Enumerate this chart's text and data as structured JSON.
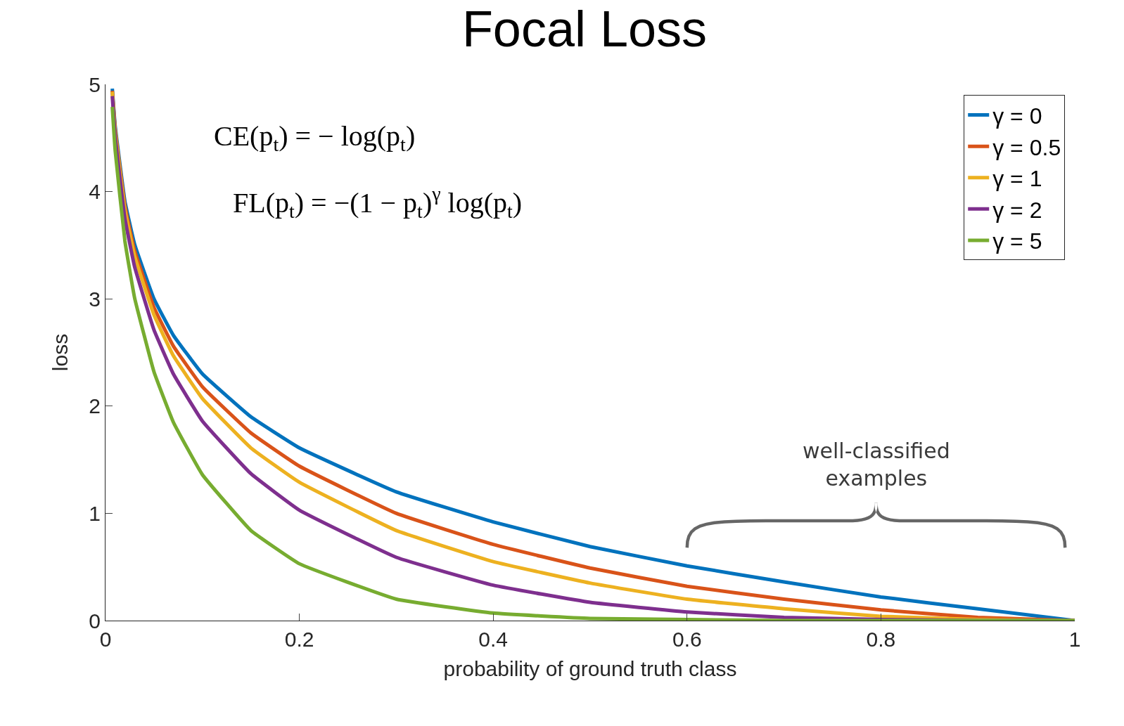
{
  "chart_data": {
    "type": "line",
    "title": "Focal Loss",
    "xlabel": "probability of ground truth class",
    "ylabel": "loss",
    "x": [
      0.007,
      0.01,
      0.02,
      0.03,
      0.05,
      0.07,
      0.1,
      0.15,
      0.2,
      0.3,
      0.4,
      0.5,
      0.6,
      0.7,
      0.8,
      0.9,
      1.0
    ],
    "series": [
      {
        "name": "γ = 0",
        "color": "#0072bd",
        "values": [
          4.96,
          4.61,
          3.91,
          3.51,
          3.0,
          2.66,
          2.3,
          1.9,
          1.61,
          1.2,
          0.92,
          0.69,
          0.51,
          0.36,
          0.22,
          0.11,
          0
        ]
      },
      {
        "name": "γ = 0.5",
        "color": "#d95319",
        "values": [
          4.94,
          4.58,
          3.87,
          3.45,
          2.92,
          2.56,
          2.18,
          1.75,
          1.44,
          1.0,
          0.71,
          0.49,
          0.32,
          0.2,
          0.1,
          0.03,
          0
        ]
      },
      {
        "name": "γ = 1",
        "color": "#edb120",
        "values": [
          4.93,
          4.56,
          3.83,
          3.4,
          2.85,
          2.47,
          2.07,
          1.61,
          1.29,
          0.84,
          0.55,
          0.35,
          0.2,
          0.11,
          0.04,
          0.01,
          0
        ]
      },
      {
        "name": "γ = 2",
        "color": "#7e2f8e",
        "values": [
          4.89,
          4.51,
          3.75,
          3.3,
          2.71,
          2.3,
          1.86,
          1.37,
          1.03,
          0.59,
          0.33,
          0.17,
          0.08,
          0.03,
          0.01,
          0,
          0
        ]
      },
      {
        "name": "γ = 5",
        "color": "#77ac30",
        "values": [
          4.79,
          4.38,
          3.54,
          3.01,
          2.32,
          1.85,
          1.36,
          0.84,
          0.53,
          0.2,
          0.07,
          0.02,
          0.01,
          0,
          0,
          0,
          0
        ]
      }
    ],
    "xlim": [
      0,
      1
    ],
    "ylim": [
      0,
      5
    ],
    "xticks": [
      0,
      0.2,
      0.4,
      0.6,
      0.8,
      1
    ],
    "yticks": [
      0,
      1,
      2,
      3,
      4,
      5
    ],
    "legend": "top right",
    "marker": "none",
    "line_style": "solid",
    "annotations": [
      "CE(p$_{t}$) = − log(p$_{t}$)",
      "FL(p$_{t}$) = −(1 − p$_{t}$)$^{γ}$ log(p$_{t}$)",
      "well-classified\nexamples"
    ]
  }
}
